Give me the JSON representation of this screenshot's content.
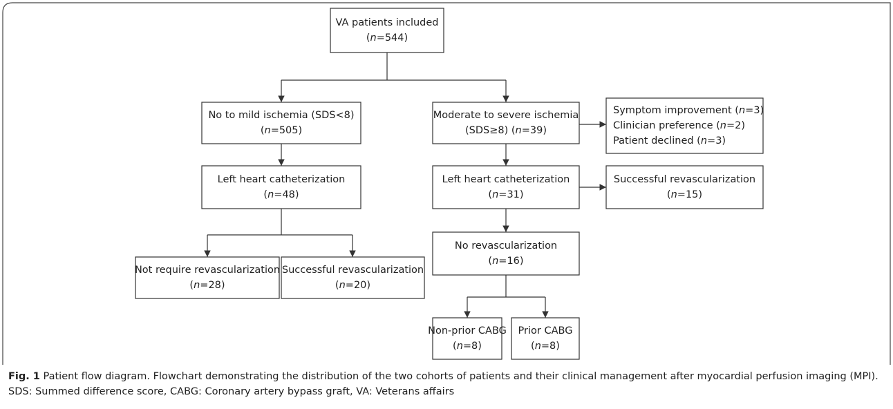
{
  "nodes": [
    {
      "lines": [
        "VA patients included",
        "(n=544)"
      ]
    },
    {
      "lines": [
        "No to mild ischemia (SDS<8)",
        "(n=505)"
      ]
    },
    {
      "lines": [
        "Moderate to severe ischemia",
        "(SDS≥8) (n=39)"
      ]
    },
    {
      "lines": [
        "Symptom improvement (n=3)",
        "Clinician preference (n=2)",
        "Patient declined (n=3)"
      ]
    },
    {
      "lines": [
        "Left heart catheterization",
        "(n=48)"
      ]
    },
    {
      "lines": [
        "Left heart catheterization",
        "(n=31)"
      ]
    },
    {
      "lines": [
        "Successful revascularization",
        "(n=15)"
      ]
    },
    {
      "lines": [
        "Not require revascularization",
        "(n=28)"
      ]
    },
    {
      "lines": [
        "Successful revascularization",
        "(n=20)"
      ]
    },
    {
      "lines": [
        "No revascularization",
        "(n=16)"
      ]
    },
    {
      "lines": [
        "Non-prior CABG",
        "(n=8)"
      ]
    },
    {
      "lines": [
        "Prior CABG",
        "(n=8)"
      ]
    }
  ],
  "caption": {
    "label": "Fig. 1",
    "text": "Patient flow diagram. Flowchart demonstrating the distribution of the two cohorts of patients and their clinical management after myocardial perfusion imaging (MPI). SDS: Summed difference score, CABG: Coronary artery bypass graft, VA: Veterans affairs"
  }
}
